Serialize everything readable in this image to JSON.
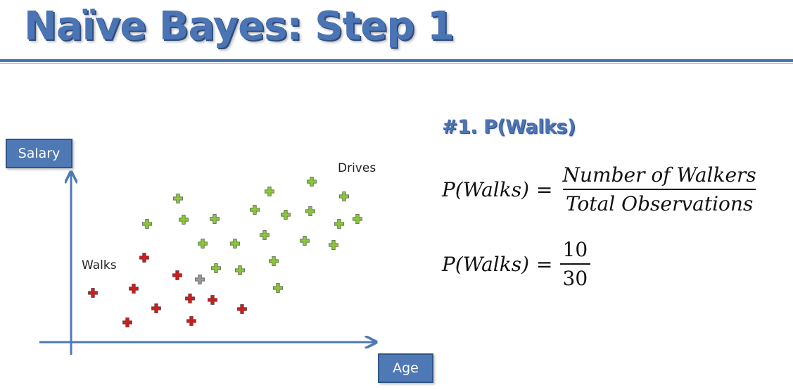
{
  "slide": {
    "title": "Naïve Bayes: Step 1",
    "accent_color": "#4a74b4"
  },
  "plot": {
    "y_axis_label": "Salary",
    "x_axis_label": "Age",
    "walks_label": "Walks",
    "drives_label": "Drives",
    "colors": {
      "walks": "#cc1f1f",
      "drives": "#8cc63f",
      "new_point": "#9a9a9a",
      "axis": "#4f79b5"
    },
    "marker": "plus-icon"
  },
  "section": {
    "title": "#1. P(Walks)"
  },
  "equation1": {
    "lhs": "P(Walks)",
    "eq": "=",
    "numerator": "Number of Walkers",
    "denominator": "Total Observations"
  },
  "equation2": {
    "lhs": "P(Walks)",
    "eq": "=",
    "numerator": "10",
    "denominator": "30"
  }
}
